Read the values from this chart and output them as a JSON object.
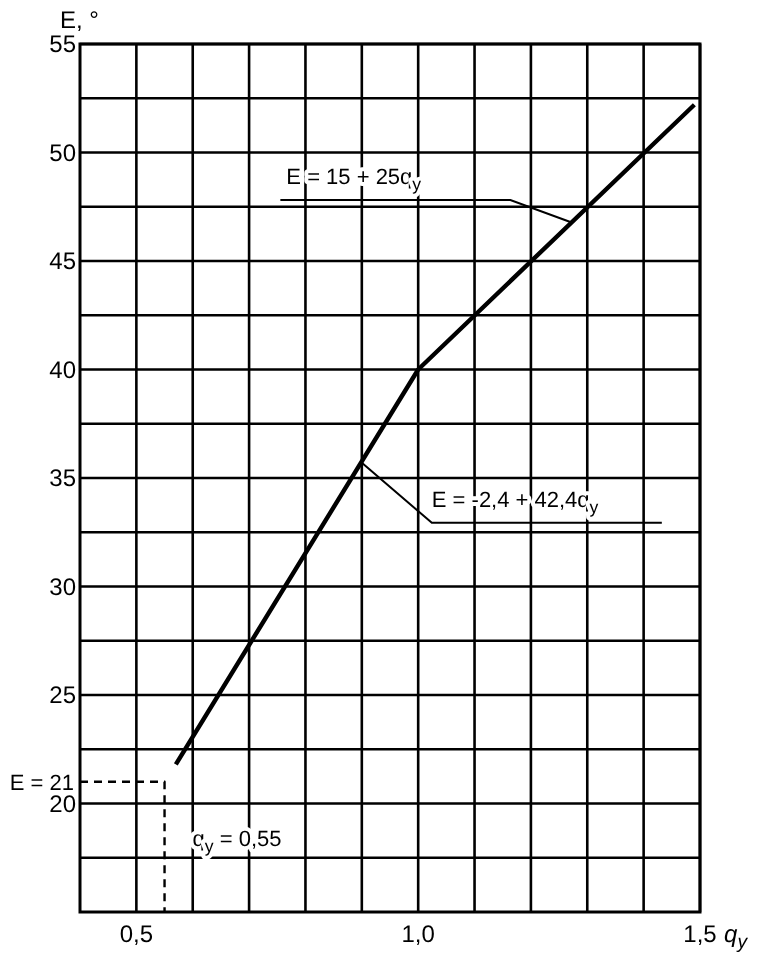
{
  "chart_data": {
    "type": "line",
    "xlabel": "q$_{y}$",
    "ylabel": "E, °",
    "xlim": [
      0.4,
      1.5
    ],
    "ylim": [
      15,
      55
    ],
    "xticks": [
      {
        "value": 0.5,
        "label": "0,5"
      },
      {
        "value": 0.6,
        "label": null
      },
      {
        "value": 0.7,
        "label": null
      },
      {
        "value": 0.8,
        "label": null
      },
      {
        "value": 0.9,
        "label": null
      },
      {
        "value": 1.0,
        "label": "1,0"
      },
      {
        "value": 1.1,
        "label": null
      },
      {
        "value": 1.2,
        "label": null
      },
      {
        "value": 1.3,
        "label": null
      },
      {
        "value": 1.4,
        "label": null
      },
      {
        "value": 1.5,
        "label": "1,5"
      }
    ],
    "yticks": [
      {
        "value": 17.5,
        "label": null
      },
      20,
      {
        "value": 22.5,
        "label": null
      },
      25,
      {
        "value": 27.5,
        "label": null
      },
      30,
      {
        "value": 32.5,
        "label": null
      },
      35,
      {
        "value": 37.5,
        "label": null
      },
      40,
      {
        "value": 42.5,
        "label": null
      },
      45,
      {
        "value": 47.5,
        "label": null
      },
      50,
      {
        "value": 52.5,
        "label": null
      },
      55
    ],
    "grid": true,
    "series": [
      {
        "color": "#000000",
        "x": [
          0.57,
          1.0,
          1.49
        ],
        "values": [
          21.8,
          40,
          52.2
        ]
      },
      {
        "color": "#000000",
        "line_style": "dashed",
        "x": [
          0.4,
          0.55,
          0.55
        ],
        "values": [
          21,
          21,
          15
        ]
      }
    ],
    "annotations": [
      {
        "text": "E = 15 + 25q$_{y}$",
        "x": 1.27,
        "y": 46.8
      },
      {
        "text": "E = -2,4 + 42,4q$_{y}$",
        "x": 0.9,
        "y": 35.7
      },
      {
        "text": "E = 21",
        "x": 0.4,
        "y": 21
      },
      {
        "text": "q$_{y}$ = 0,55",
        "x": 0.55,
        "y": 18.4
      }
    ]
  }
}
